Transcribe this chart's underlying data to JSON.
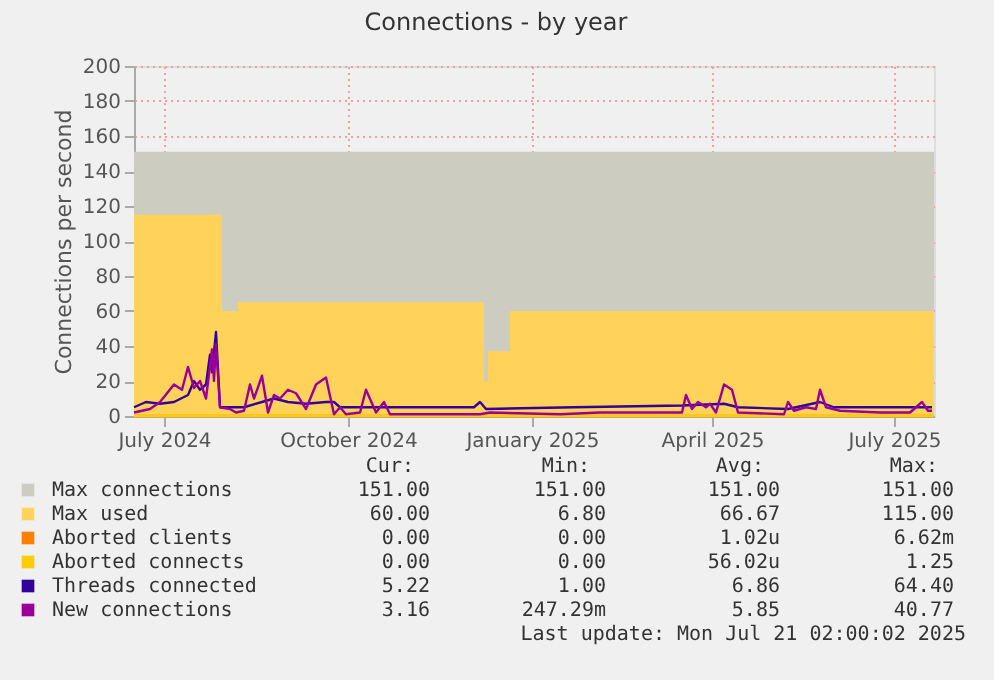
{
  "chart_data": {
    "type": "line",
    "title": "Connections - by year",
    "ylabel": "Connections per second",
    "xlim": [
      "2024-06-16",
      "2025-07-21"
    ],
    "xticks": [
      {
        "value": "2024-07-01",
        "label": "July 2024"
      },
      {
        "value": "2024-10-01",
        "label": "October 2024"
      },
      {
        "value": "2025-01-01",
        "label": "January 2025"
      },
      {
        "value": "2025-04-01",
        "label": "April 2025"
      },
      {
        "value": "2025-07-01",
        "label": "July 2025"
      }
    ],
    "ylim": [
      0,
      200
    ],
    "yticks": [
      0,
      20,
      40,
      60,
      80,
      100,
      120,
      140,
      160,
      180,
      200
    ],
    "grid": true,
    "legend": "bottom",
    "series": [
      {
        "name": "Max connections",
        "type": "area",
        "color": "#ccccc0",
        "x": [
          "2024-06-16",
          "2025-07-21"
        ],
        "values": [
          151,
          151
        ]
      },
      {
        "name": "Max used",
        "type": "area",
        "color": "#ffd35a",
        "x": [
          "2024-06-16",
          "2024-07-30",
          "2024-07-30",
          "2024-08-07",
          "2024-08-07",
          "2024-12-08",
          "2024-12-08",
          "2024-12-10",
          "2024-12-10",
          "2024-12-21",
          "2024-12-21",
          "2025-07-21"
        ],
        "values": [
          115,
          115,
          60,
          60,
          65,
          65,
          20,
          20,
          37,
          37,
          60,
          60
        ]
      },
      {
        "name": "Aborted clients",
        "color": "#ff8000",
        "x": [
          "2024-06-16",
          "2025-07-21"
        ],
        "values": [
          0,
          0
        ]
      },
      {
        "name": "Aborted connects",
        "color": "#ffcc00",
        "x": [
          "2024-06-16",
          "2025-07-21"
        ],
        "values": [
          0,
          0
        ]
      },
      {
        "name": "Threads connected",
        "color": "#330099",
        "x": [
          "2024-06-16",
          "2024-06-22",
          "2024-06-29",
          "2024-07-06",
          "2024-07-13",
          "2024-07-16",
          "2024-07-19",
          "2024-07-22",
          "2024-07-24",
          "2024-07-25",
          "2024-07-27",
          "2024-07-29",
          "2024-08-10",
          "2024-08-19",
          "2024-08-25",
          "2024-09-01",
          "2024-09-10",
          "2024-09-20",
          "2024-09-24",
          "2024-09-27",
          "2024-10-24",
          "2024-12-03",
          "2024-12-06",
          "2024-12-09",
          "2025-01-22",
          "2025-03-17",
          "2025-04-07",
          "2025-04-14",
          "2025-05-09",
          "2025-05-25",
          "2025-06-01",
          "2025-07-01",
          "2025-07-20"
        ],
        "values": [
          5,
          8,
          7,
          8,
          12,
          20,
          15,
          18,
          35,
          25,
          48,
          5,
          5,
          8,
          10,
          8,
          7,
          8,
          8,
          5,
          5,
          5,
          8,
          4,
          5,
          6,
          7,
          5,
          4,
          8,
          5,
          5,
          5
        ]
      },
      {
        "name": "New connections",
        "color": "#990099",
        "x": [
          "2024-06-16",
          "2024-06-24",
          "2024-06-29",
          "2024-07-06",
          "2024-07-10",
          "2024-07-13",
          "2024-07-16",
          "2024-07-19",
          "2024-07-22",
          "2024-07-25",
          "2024-07-26",
          "2024-07-27",
          "2024-07-29",
          "2024-08-03",
          "2024-08-06",
          "2024-08-10",
          "2024-08-13",
          "2024-08-15",
          "2024-08-19",
          "2024-08-22",
          "2024-08-25",
          "2024-08-28",
          "2024-09-01",
          "2024-09-05",
          "2024-09-10",
          "2024-09-15",
          "2024-09-20",
          "2024-09-24",
          "2024-09-27",
          "2024-09-30",
          "2024-10-07",
          "2024-10-10",
          "2024-10-15",
          "2024-10-19",
          "2024-10-22",
          "2024-12-06",
          "2024-12-11",
          "2025-01-15",
          "2025-02-04",
          "2025-03-17",
          "2025-03-19",
          "2025-03-22",
          "2025-03-25",
          "2025-03-29",
          "2025-03-31",
          "2025-04-03",
          "2025-04-07",
          "2025-04-11",
          "2025-04-14",
          "2025-05-07",
          "2025-05-09",
          "2025-05-12",
          "2025-05-18",
          "2025-05-23",
          "2025-05-25",
          "2025-05-28",
          "2025-06-04",
          "2025-06-24",
          "2025-07-09",
          "2025-07-15",
          "2025-07-18",
          "2025-07-20"
        ],
        "values": [
          2,
          4,
          8,
          18,
          15,
          28,
          16,
          20,
          10,
          38,
          20,
          41,
          5,
          4,
          2,
          3,
          18,
          10,
          23,
          2,
          12,
          10,
          15,
          13,
          4,
          18,
          22,
          1,
          5,
          1,
          2,
          15,
          2,
          8,
          1,
          1,
          2,
          1,
          2,
          2,
          12,
          4,
          8,
          5,
          7,
          2,
          18,
          15,
          2,
          1,
          8,
          3,
          5,
          4,
          15,
          5,
          3,
          2,
          2,
          8,
          3,
          3
        ]
      }
    ],
    "annotations": [
      "Cur:",
      "Min:",
      "Avg:",
      "Max:",
      "151.00",
      "151.00",
      "151.00",
      "151.00",
      "60.00",
      "6.80",
      "66.67",
      "115.00",
      "0.00",
      "0.00",
      "1.02u",
      "6.62m",
      "0.00",
      "0.00",
      "56.02u",
      "1.25",
      "5.22",
      "1.00",
      "6.86",
      "64.40",
      "3.16",
      "247.29m",
      "5.85",
      "40.77",
      "Last update: Mon Jul 21 02:00:02 2025"
    ]
  }
}
